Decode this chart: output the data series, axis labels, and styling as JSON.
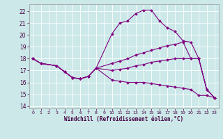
{
  "background_color": "#cce8e8",
  "line_color": "#800080",
  "xlim": [
    -0.5,
    23.5
  ],
  "ylim": [
    13.8,
    22.6
  ],
  "yticks": [
    14,
    15,
    16,
    17,
    18,
    19,
    20,
    21,
    22
  ],
  "xticks": [
    0,
    1,
    2,
    3,
    4,
    5,
    6,
    7,
    8,
    9,
    10,
    11,
    12,
    13,
    14,
    15,
    16,
    17,
    18,
    19,
    20,
    21,
    22,
    23
  ],
  "xlabel": "Windchill (Refroidissement éolien,°C)",
  "curve1_x": [
    0,
    1,
    3,
    4,
    5,
    6,
    7,
    8,
    10,
    11,
    12,
    13,
    14,
    15,
    16,
    17,
    18,
    19,
    20,
    21,
    22,
    23
  ],
  "curve1_y": [
    18.0,
    17.6,
    17.4,
    16.9,
    16.4,
    16.3,
    16.5,
    17.2,
    20.1,
    21.0,
    21.2,
    21.8,
    22.1,
    22.1,
    21.2,
    20.6,
    20.3,
    19.5,
    19.4,
    18.0,
    15.4,
    14.7
  ],
  "curve2_x": [
    0,
    1,
    3,
    4,
    5,
    6,
    7,
    8,
    10,
    11,
    12,
    13,
    14,
    15,
    16,
    17,
    18,
    19,
    20,
    21,
    22,
    23
  ],
  "curve2_y": [
    18.0,
    17.6,
    17.4,
    16.9,
    16.4,
    16.3,
    16.5,
    17.2,
    17.6,
    17.8,
    18.0,
    18.3,
    18.5,
    18.7,
    18.9,
    19.1,
    19.2,
    19.4,
    18.0,
    18.0,
    15.4,
    14.7
  ],
  "curve3_x": [
    0,
    1,
    3,
    4,
    5,
    6,
    7,
    8,
    10,
    11,
    12,
    13,
    14,
    15,
    16,
    17,
    18,
    19,
    20,
    21,
    22,
    23
  ],
  "curve3_y": [
    18.0,
    17.6,
    17.4,
    16.9,
    16.4,
    16.3,
    16.5,
    17.2,
    17.0,
    17.1,
    17.2,
    17.4,
    17.5,
    17.7,
    17.8,
    17.9,
    18.0,
    18.0,
    18.0,
    18.0,
    15.4,
    14.7
  ],
  "curve4_x": [
    0,
    1,
    3,
    4,
    5,
    6,
    7,
    8,
    10,
    11,
    12,
    13,
    14,
    15,
    16,
    17,
    18,
    19,
    20,
    21,
    22,
    23
  ],
  "curve4_y": [
    18.0,
    17.6,
    17.4,
    16.9,
    16.4,
    16.3,
    16.5,
    17.2,
    16.2,
    16.1,
    16.0,
    16.0,
    16.0,
    15.9,
    15.8,
    15.7,
    15.6,
    15.5,
    15.4,
    14.9,
    14.9,
    14.7
  ]
}
